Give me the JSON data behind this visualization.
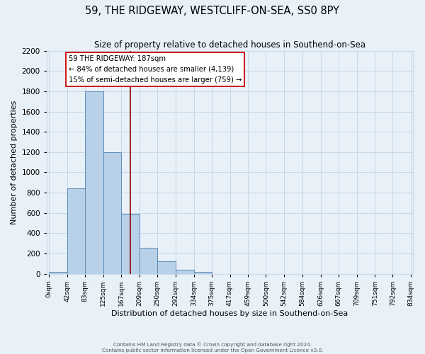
{
  "title": "59, THE RIDGEWAY, WESTCLIFF-ON-SEA, SS0 8PY",
  "subtitle": "Size of property relative to detached houses in Southend-on-Sea",
  "xlabel": "Distribution of detached houses by size in Southend-on-Sea",
  "ylabel": "Number of detached properties",
  "bin_labels": [
    "0sqm",
    "42sqm",
    "83sqm",
    "125sqm",
    "167sqm",
    "209sqm",
    "250sqm",
    "292sqm",
    "334sqm",
    "375sqm",
    "417sqm",
    "459sqm",
    "500sqm",
    "542sqm",
    "584sqm",
    "626sqm",
    "667sqm",
    "709sqm",
    "751sqm",
    "792sqm",
    "834sqm"
  ],
  "bin_edges": [
    0,
    42,
    83,
    125,
    167,
    209,
    250,
    292,
    334,
    375,
    417,
    459,
    500,
    542,
    584,
    626,
    667,
    709,
    751,
    792,
    834
  ],
  "bar_heights": [
    20,
    840,
    1800,
    1200,
    590,
    255,
    125,
    40,
    20,
    0,
    0,
    0,
    0,
    0,
    0,
    0,
    0,
    0,
    0,
    0
  ],
  "bar_color": "#b8d0e8",
  "bar_edgecolor": "#5b8db8",
  "marker_value": 187,
  "marker_color": "#8b0000",
  "annotation_title": "59 THE RIDGEWAY: 187sqm",
  "annotation_line1": "← 84% of detached houses are smaller (4,139)",
  "annotation_line2": "15% of semi-detached houses are larger (759) →",
  "annotation_box_color": "#ffffff",
  "annotation_box_edgecolor": "#cc0000",
  "ylim": [
    0,
    2200
  ],
  "yticks": [
    0,
    200,
    400,
    600,
    800,
    1000,
    1200,
    1400,
    1600,
    1800,
    2000,
    2200
  ],
  "grid_color": "#c8d8e8",
  "background_color": "#e8f0f8",
  "footer_line1": "Contains HM Land Registry data © Crown copyright and database right 2024.",
  "footer_line2": "Contains public sector information licensed under the Open Government Licence v3.0."
}
